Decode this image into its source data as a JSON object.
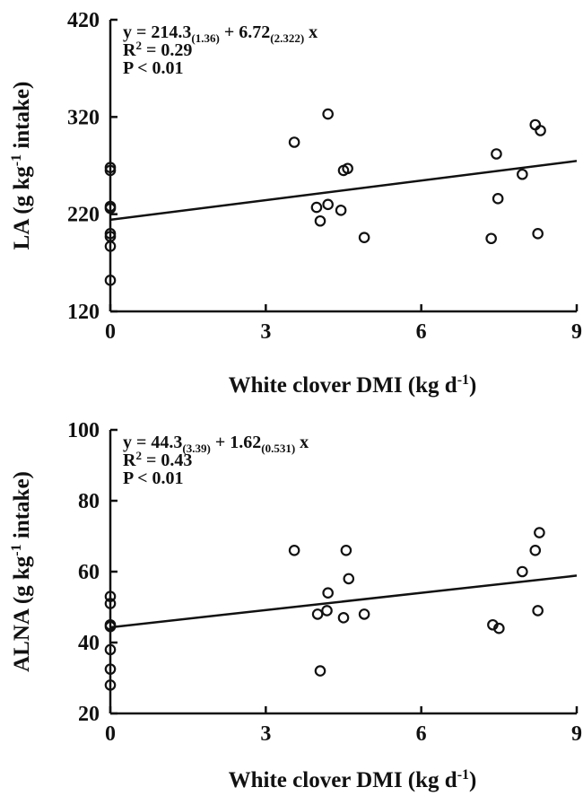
{
  "chart_data": [
    {
      "type": "scatter",
      "xlabel": {
        "text": "White clover DMI (kg d",
        "sup": "-1",
        "close": ")"
      },
      "ylabel": {
        "text": "LA (g kg",
        "sup": "-1",
        "close": " intake)"
      },
      "xlim": [
        0,
        9
      ],
      "ylim": [
        120,
        420
      ],
      "xticks": [
        0,
        3,
        6,
        9
      ],
      "yticks": [
        120,
        220,
        320,
        420
      ],
      "annotation": {
        "eq_prefix": "y = 214.3",
        "se_intercept": "(1.36)",
        "eq_mid": " + 6.72",
        "se_slope": "(2.322)",
        "eq_suffix": " x",
        "r2_prefix": "R",
        "r2_sup": "2",
        "r2_suffix": " = 0.29",
        "p": "P < 0.01"
      },
      "regression": {
        "intercept": 214.3,
        "slope": 6.72
      },
      "points": [
        [
          0,
          268
        ],
        [
          0,
          265
        ],
        [
          0,
          228
        ],
        [
          0,
          226
        ],
        [
          0,
          200
        ],
        [
          0,
          197
        ],
        [
          0,
          187
        ],
        [
          0,
          152
        ],
        [
          3.55,
          294
        ],
        [
          4.2,
          323
        ],
        [
          3.98,
          227
        ],
        [
          4.05,
          213
        ],
        [
          4.2,
          230
        ],
        [
          4.45,
          224
        ],
        [
          4.5,
          265
        ],
        [
          4.58,
          267
        ],
        [
          4.9,
          196
        ],
        [
          7.35,
          195
        ],
        [
          7.45,
          282
        ],
        [
          7.48,
          236
        ],
        [
          7.95,
          261
        ],
        [
          8.2,
          312
        ],
        [
          8.3,
          306
        ],
        [
          8.25,
          200
        ]
      ]
    },
    {
      "type": "scatter",
      "xlabel": {
        "text": "White clover DMI (kg d",
        "sup": "-1",
        "close": ")"
      },
      "ylabel": {
        "text": "ALNA (g kg",
        "sup": "-1",
        "close": " intake)"
      },
      "xlim": [
        0,
        9
      ],
      "ylim": [
        20,
        100
      ],
      "xticks": [
        0,
        3,
        6,
        9
      ],
      "yticks": [
        20,
        40,
        60,
        80,
        100
      ],
      "annotation": {
        "eq_prefix": "y = 44.3",
        "se_intercept": "(3.39)",
        "eq_mid": " + 1.62",
        "se_slope": "(0.531)",
        "eq_suffix": " x",
        "r2_prefix": "R",
        "r2_sup": "2",
        "r2_suffix": " = 0.43",
        "p": "P < 0.01"
      },
      "regression": {
        "intercept": 44.3,
        "slope": 1.62
      },
      "points": [
        [
          0,
          53
        ],
        [
          0,
          51
        ],
        [
          0,
          45
        ],
        [
          0,
          44.5
        ],
        [
          0,
          38
        ],
        [
          0,
          32.5
        ],
        [
          0,
          28
        ],
        [
          3.55,
          66
        ],
        [
          4.05,
          32
        ],
        [
          4.0,
          48
        ],
        [
          4.18,
          49
        ],
        [
          4.2,
          54
        ],
        [
          4.5,
          47
        ],
        [
          4.55,
          66
        ],
        [
          4.6,
          58
        ],
        [
          4.9,
          48
        ],
        [
          7.38,
          45
        ],
        [
          7.5,
          44
        ],
        [
          7.95,
          60
        ],
        [
          8.2,
          66
        ],
        [
          8.28,
          71
        ],
        [
          8.25,
          49
        ]
      ]
    }
  ]
}
